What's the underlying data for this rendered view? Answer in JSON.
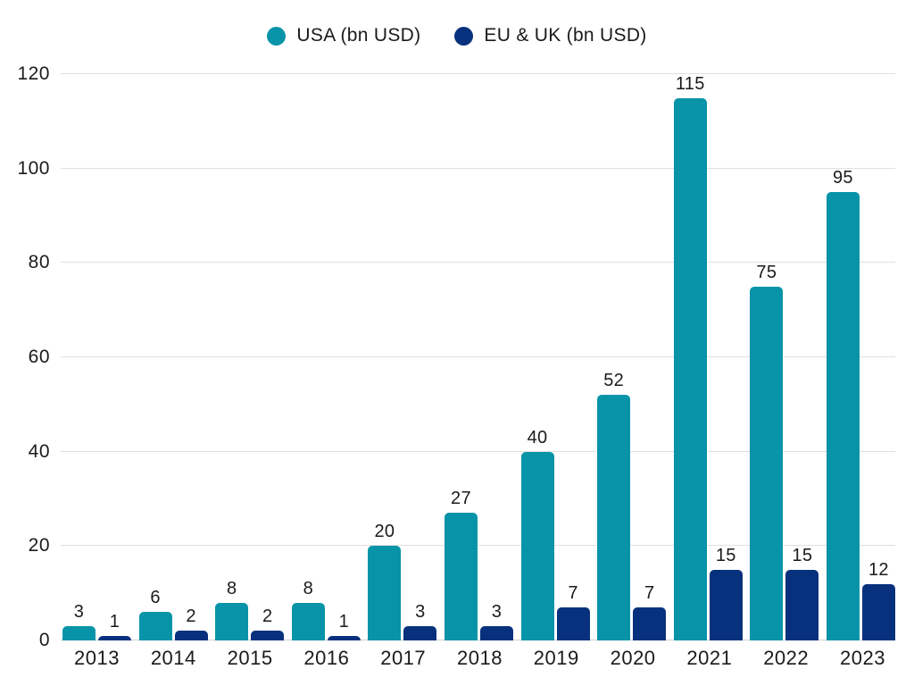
{
  "legend": {
    "items": [
      {
        "label": "USA (bn USD)",
        "color": "#0894A8",
        "icon": "circle-swatch-icon"
      },
      {
        "label": "EU & UK (bn USD)",
        "color": "#07317C",
        "icon": "circle-swatch-icon"
      }
    ]
  },
  "chart_data": {
    "type": "bar",
    "title": "",
    "xlabel": "",
    "ylabel": "",
    "categories": [
      "2013",
      "2014",
      "2015",
      "2016",
      "2017",
      "2018",
      "2019",
      "2020",
      "2021",
      "2022",
      "2023"
    ],
    "series": [
      {
        "name": "USA (bn USD)",
        "color": "#0894A8",
        "values": [
          3,
          6,
          8,
          8,
          20,
          27,
          40,
          52,
          115,
          75,
          95
        ]
      },
      {
        "name": "EU & UK (bn USD)",
        "color": "#07317C",
        "values": [
          1,
          2,
          2,
          1,
          3,
          3,
          7,
          7,
          15,
          15,
          12
        ]
      }
    ],
    "data_labels_visible": true,
    "ylim": [
      0,
      120
    ],
    "yticks": [
      0,
      20,
      40,
      60,
      80,
      100,
      120
    ],
    "grid": true,
    "legend_position": "top-center"
  },
  "colors": {
    "bar_usa": "#0894A8",
    "bar_eu_uk": "#07317C",
    "gridline": "#e0e0e0",
    "axis_baseline": "#d2d2d2",
    "text": "#1b1b1b",
    "background": "#ffffff"
  }
}
